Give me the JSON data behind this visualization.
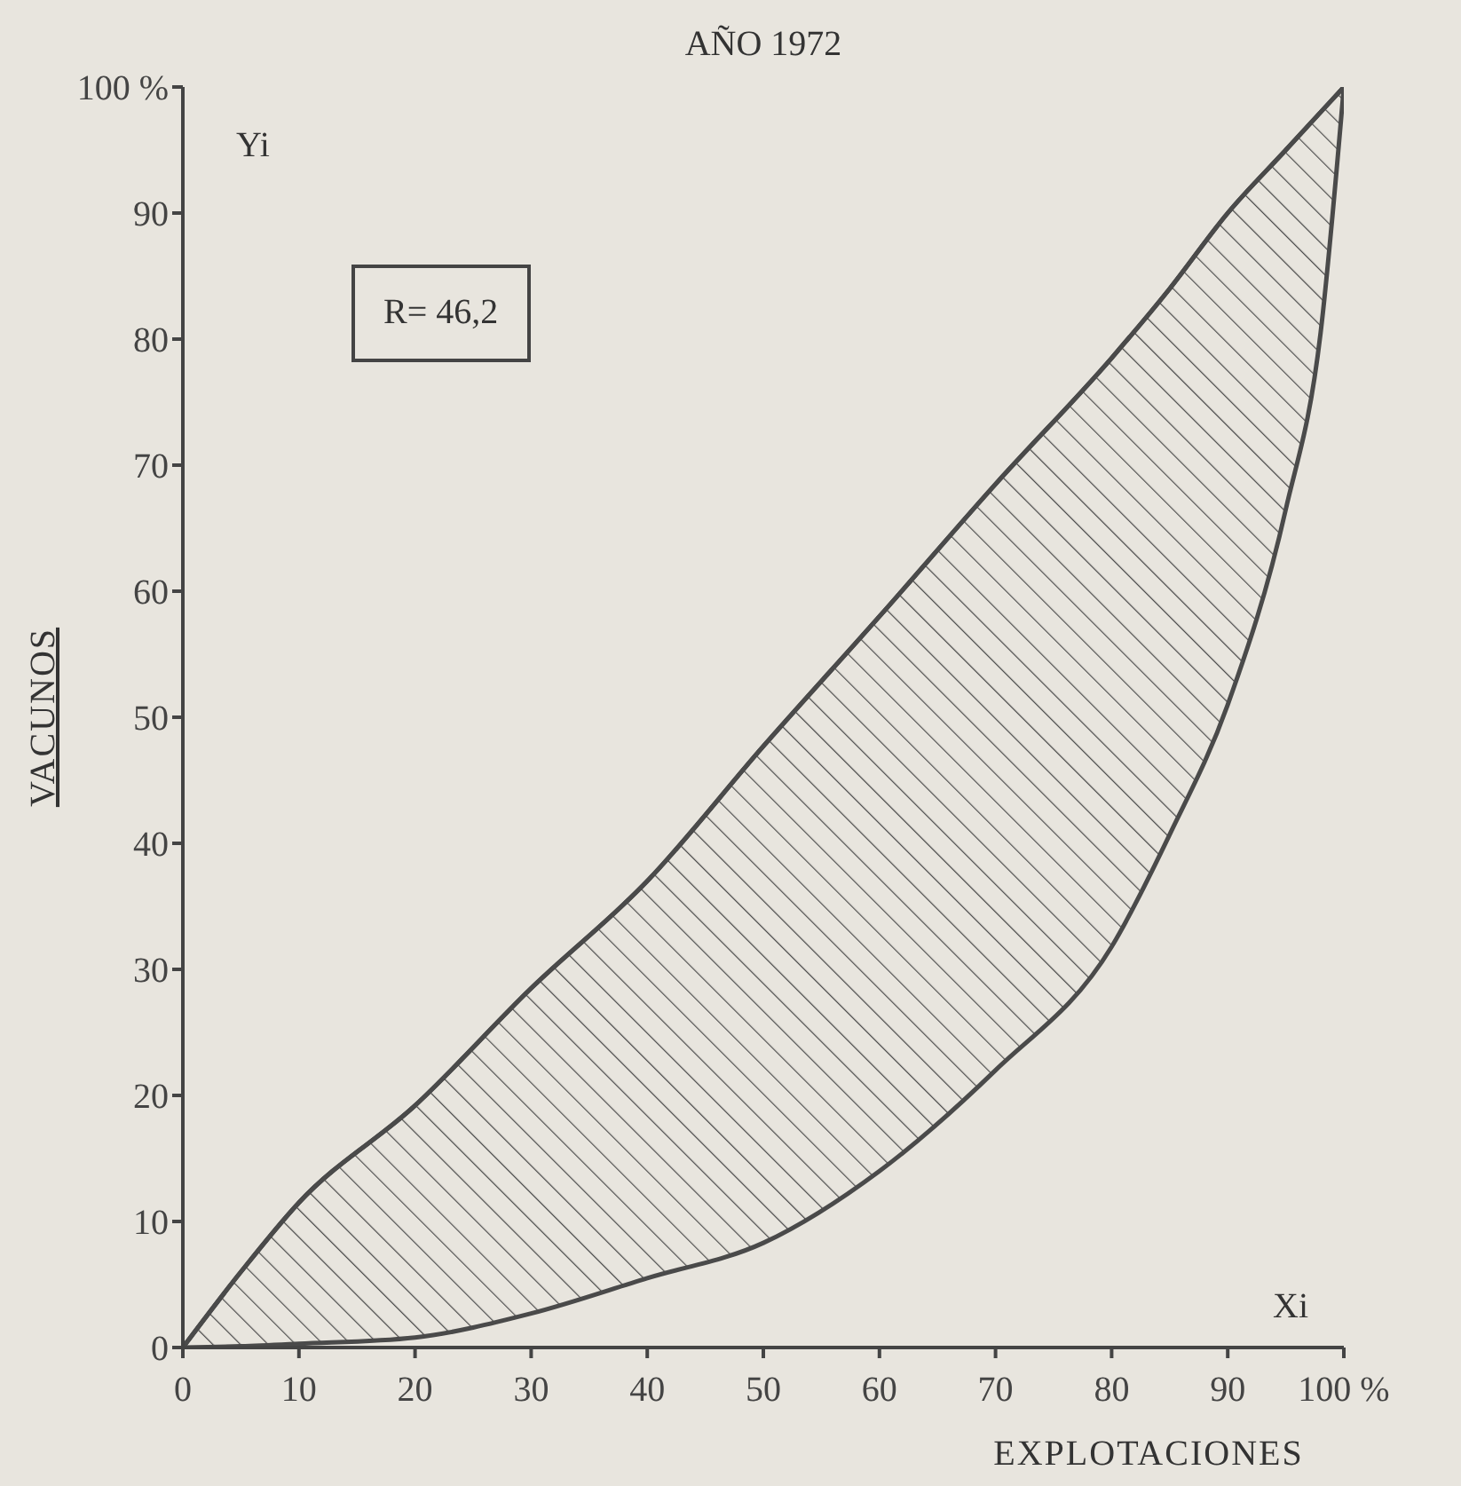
{
  "chart_data": {
    "type": "line",
    "title": "AÑO 1972",
    "xlabel": "EXPLOTACIONES",
    "ylabel": "VACUNOS",
    "x": [
      0,
      5,
      10,
      20,
      30,
      40,
      50,
      60,
      70,
      80,
      85,
      90,
      95,
      98,
      100
    ],
    "series": [
      {
        "color": "#4a4a4a",
        "values": [
          0,
          6,
          11.5,
          19.2,
          28.5,
          37,
          47.7,
          58,
          68.5,
          78.5,
          84,
          90,
          95,
          98,
          100
        ],
        "upper": [
          0,
          6,
          11.5,
          19.2,
          28.5,
          37,
          47.7,
          58,
          68.5,
          78.5,
          84,
          90,
          95,
          98,
          100
        ],
        "lower": [
          0,
          0.1,
          0.3,
          0.8,
          2.7,
          5.5,
          8.3,
          14,
          22,
          31.8,
          40.7,
          51,
          66.5,
          80.5,
          100
        ]
      }
    ],
    "xlim": [
      0,
      100
    ],
    "ylim": [
      0,
      100
    ],
    "xticks": [
      0,
      10,
      20,
      30,
      40,
      50,
      60,
      70,
      80,
      90,
      {
        "value": 100,
        "label": "100 %"
      }
    ],
    "yticks": [
      0,
      10,
      20,
      30,
      40,
      50,
      60,
      70,
      80,
      90,
      {
        "value": 100,
        "label": "100 %"
      }
    ],
    "annotations": [
      "Yi",
      "Xi",
      "R= 46,2"
    ],
    "grid": false,
    "legend": false,
    "marker": "none",
    "line_style": "solid"
  }
}
